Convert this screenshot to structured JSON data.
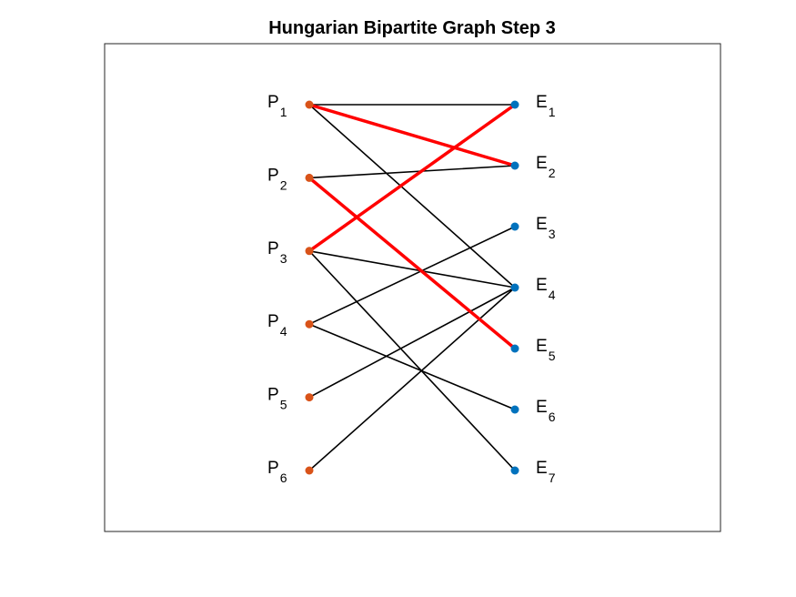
{
  "title": "Hungarian Bipartite Graph Step 3",
  "colors": {
    "p_node": "#d95319",
    "e_node": "#0072bd",
    "edge": "#000000",
    "matched_edge": "#ff0000"
  },
  "left_nodes": [
    {
      "id": "P1",
      "letter": "P",
      "sub": "1"
    },
    {
      "id": "P2",
      "letter": "P",
      "sub": "2"
    },
    {
      "id": "P3",
      "letter": "P",
      "sub": "3"
    },
    {
      "id": "P4",
      "letter": "P",
      "sub": "4"
    },
    {
      "id": "P5",
      "letter": "P",
      "sub": "5"
    },
    {
      "id": "P6",
      "letter": "P",
      "sub": "6"
    }
  ],
  "right_nodes": [
    {
      "id": "E1",
      "letter": "E",
      "sub": "1"
    },
    {
      "id": "E2",
      "letter": "E",
      "sub": "2"
    },
    {
      "id": "E3",
      "letter": "E",
      "sub": "3"
    },
    {
      "id": "E4",
      "letter": "E",
      "sub": "4"
    },
    {
      "id": "E5",
      "letter": "E",
      "sub": "5"
    },
    {
      "id": "E6",
      "letter": "E",
      "sub": "6"
    },
    {
      "id": "E7",
      "letter": "E",
      "sub": "7"
    }
  ],
  "edges": [
    {
      "from": "P1",
      "to": "E1",
      "matched": false
    },
    {
      "from": "P1",
      "to": "E4",
      "matched": false
    },
    {
      "from": "P2",
      "to": "E2",
      "matched": false
    },
    {
      "from": "P3",
      "to": "E4",
      "matched": false
    },
    {
      "from": "P3",
      "to": "E7",
      "matched": false
    },
    {
      "from": "P4",
      "to": "E3",
      "matched": false
    },
    {
      "from": "P4",
      "to": "E6",
      "matched": false
    },
    {
      "from": "P5",
      "to": "E4",
      "matched": false
    },
    {
      "from": "P6",
      "to": "E4",
      "matched": false
    },
    {
      "from": "P1",
      "to": "E2",
      "matched": true
    },
    {
      "from": "P2",
      "to": "E5",
      "matched": true
    },
    {
      "from": "P3",
      "to": "E1",
      "matched": true
    }
  ]
}
